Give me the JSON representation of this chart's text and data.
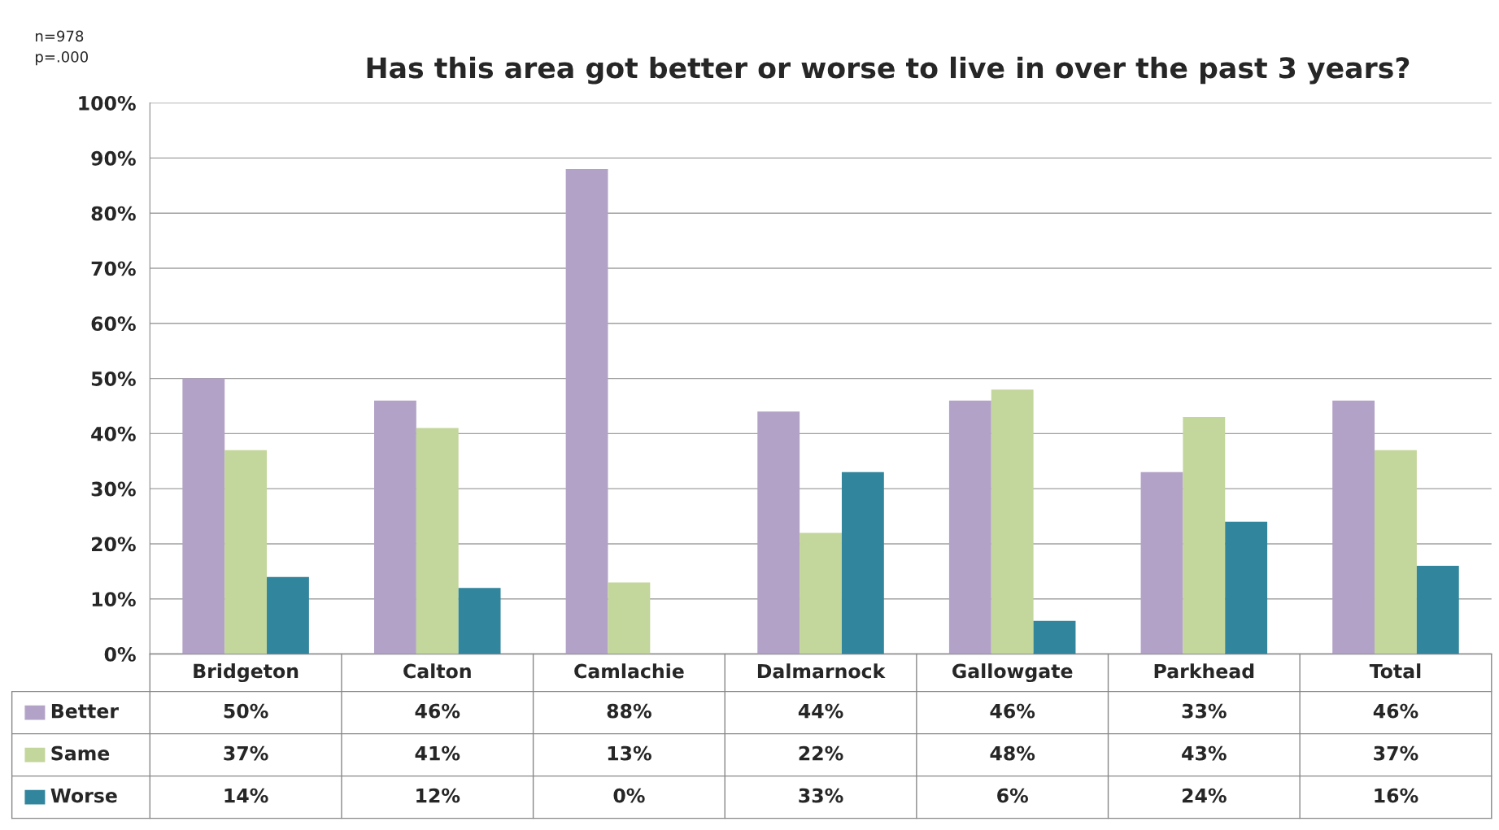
{
  "chart_data": {
    "type": "bar",
    "title": "Has this area got better or worse to live in over the past 3 years?",
    "annotations": [
      "n=978",
      "p=.000"
    ],
    "categories": [
      "Bridgeton",
      "Calton",
      "Camlachie",
      "Dalmarnock",
      "Gallowgate",
      "Parkhead",
      "Total"
    ],
    "series": [
      {
        "name": "Better",
        "color": "#b3a2c7",
        "values": [
          50,
          46,
          88,
          44,
          46,
          33,
          46
        ]
      },
      {
        "name": "Same",
        "color": "#c3d69b",
        "values": [
          37,
          41,
          13,
          22,
          48,
          43,
          37
        ]
      },
      {
        "name": "Worse",
        "color": "#31859c",
        "values": [
          14,
          12,
          0,
          33,
          6,
          24,
          16
        ]
      }
    ],
    "ylim": [
      0,
      100
    ],
    "yticks": [
      {
        "value": 0,
        "label": "0%"
      },
      {
        "value": 10,
        "label": "10%"
      },
      {
        "value": 20,
        "label": "20%"
      },
      {
        "value": 30,
        "label": "30%"
      },
      {
        "value": 40,
        "label": "40%"
      },
      {
        "value": 50,
        "label": "50%"
      },
      {
        "value": 60,
        "label": "60%"
      },
      {
        "value": 70,
        "label": "70%"
      },
      {
        "value": 80,
        "label": "80%"
      },
      {
        "value": 90,
        "label": "90%"
      },
      {
        "value": 100,
        "label": "100%"
      }
    ],
    "value_labels": [
      [
        "50%",
        "46%",
        "88%",
        "44%",
        "46%",
        "33%",
        "46%"
      ],
      [
        "37%",
        "41%",
        "13%",
        "22%",
        "48%",
        "43%",
        "37%"
      ],
      [
        "14%",
        "12%",
        "0%",
        "33%",
        "6%",
        "24%",
        "16%"
      ]
    ],
    "grid": "y",
    "legend": "bottom left"
  }
}
